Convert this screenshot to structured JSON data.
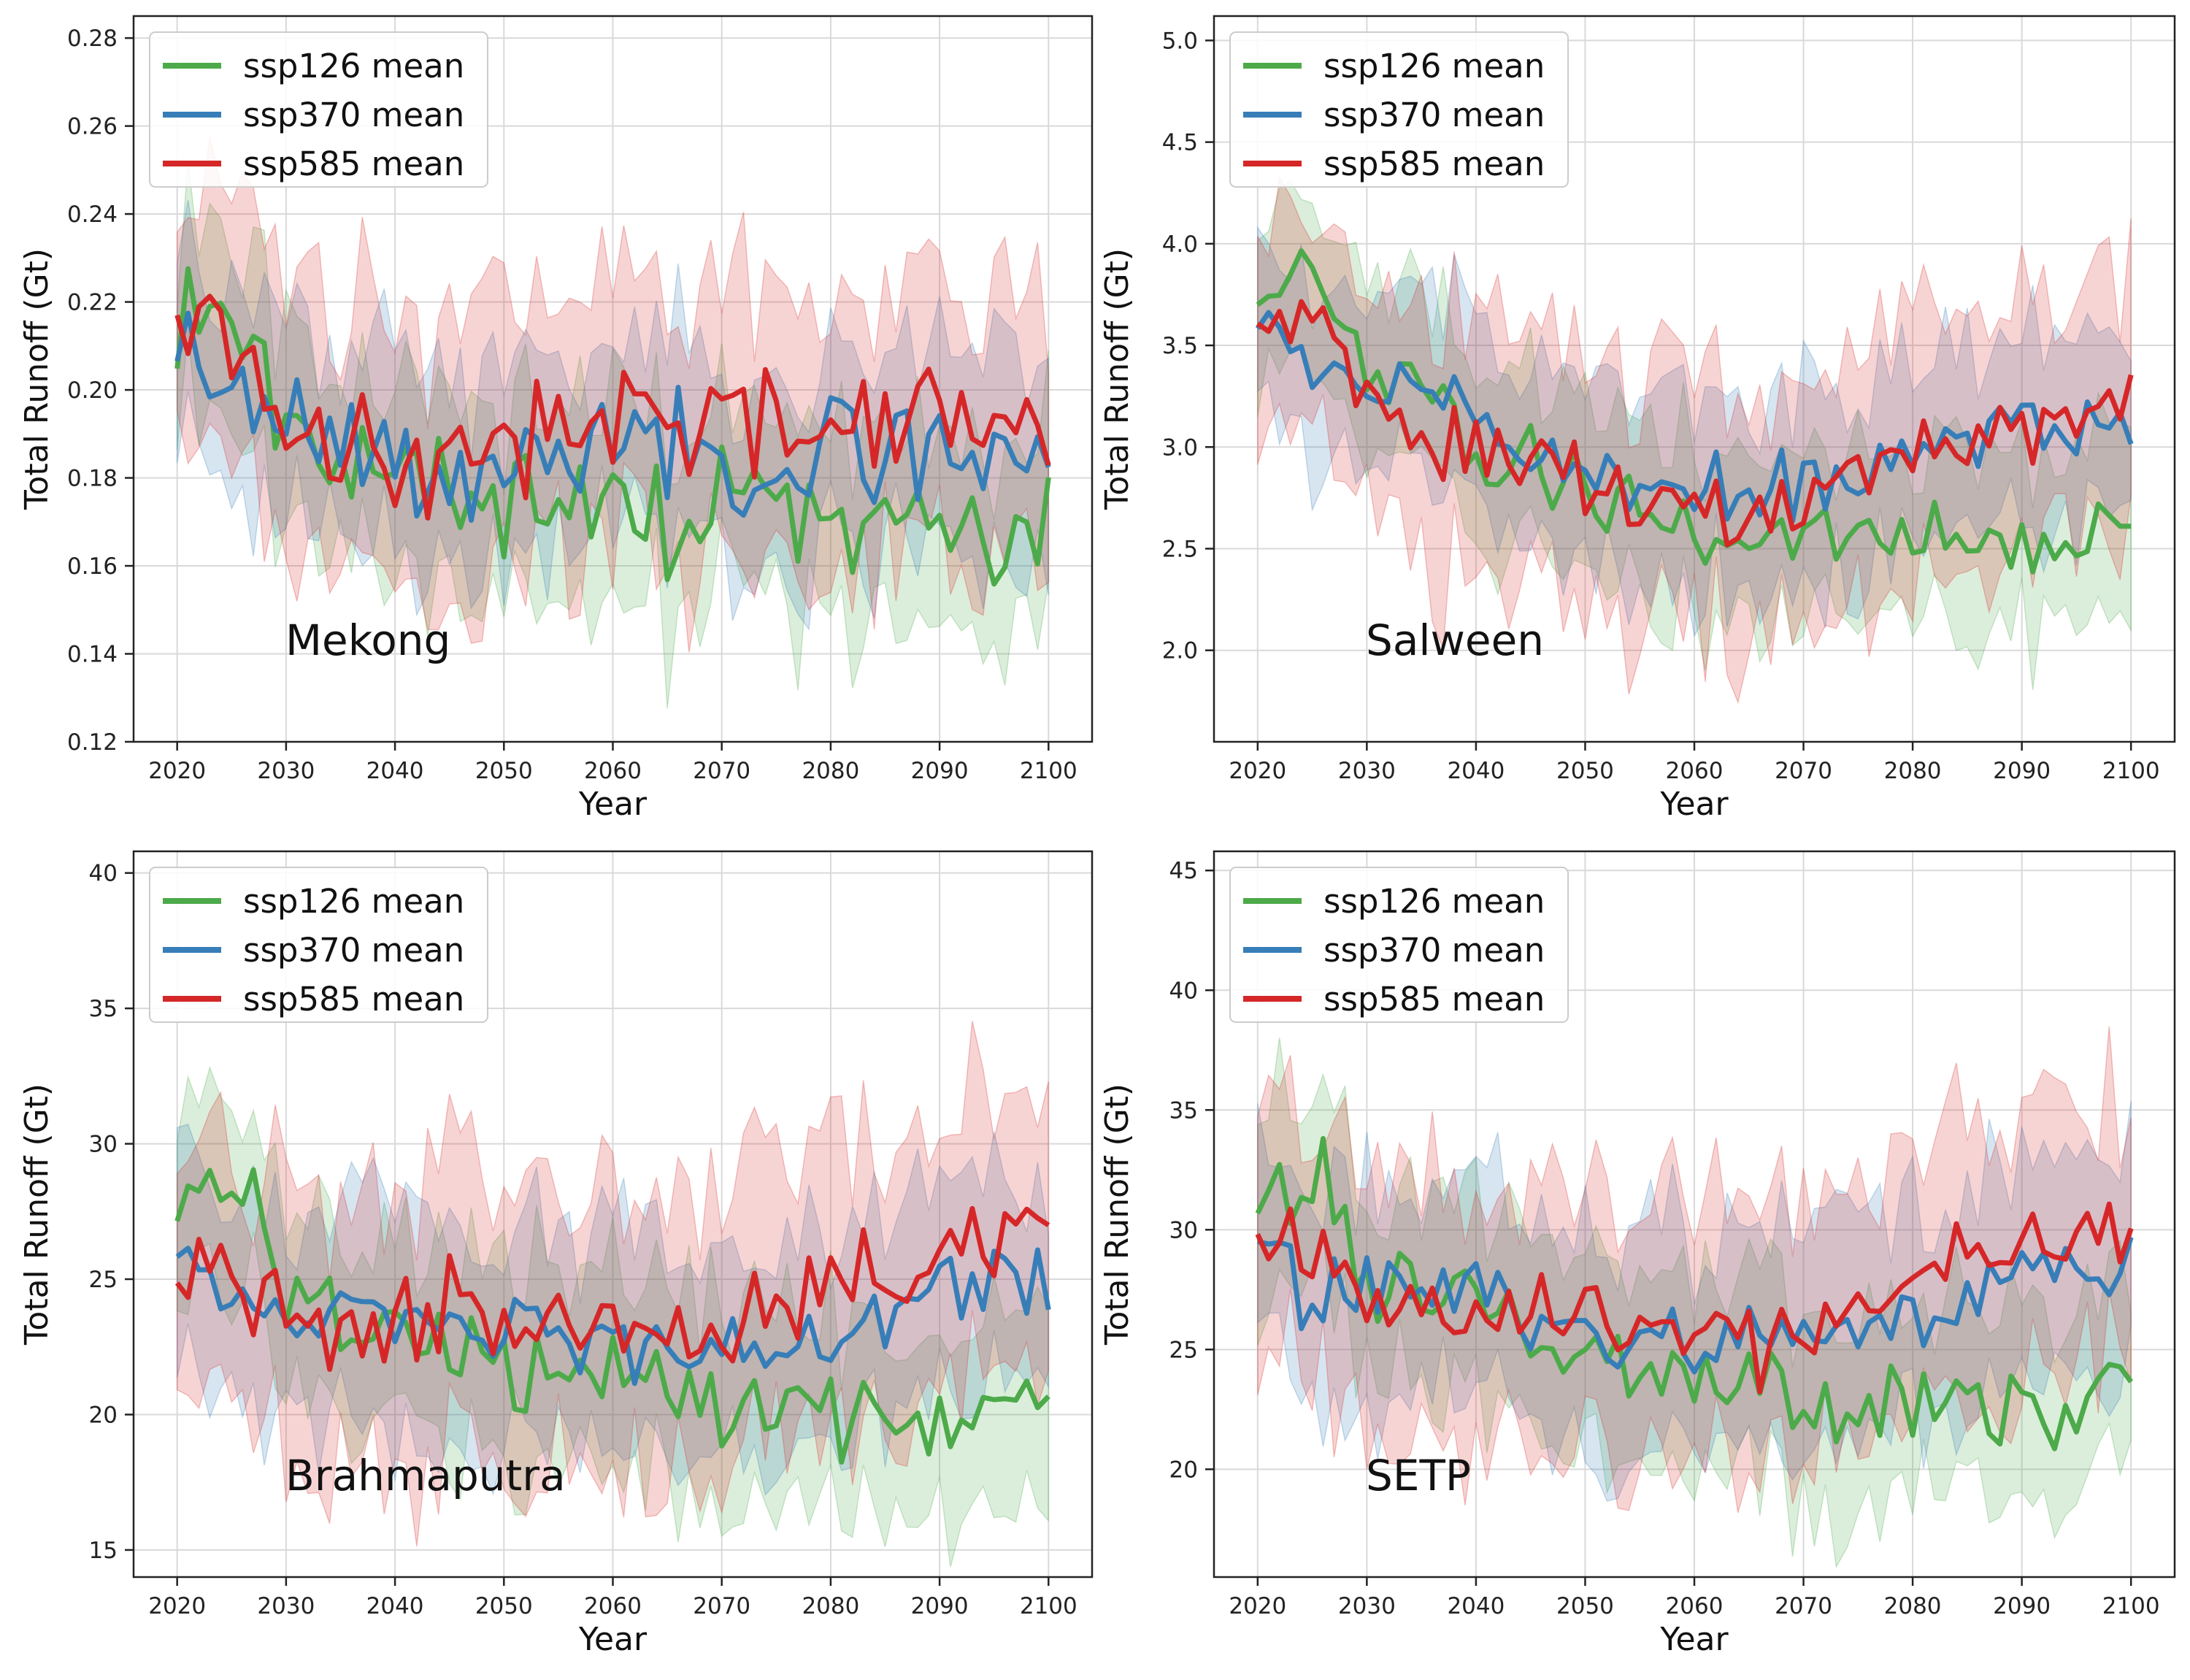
{
  "figure": {
    "legend_placement": "upper-left",
    "grid": true
  },
  "chart_data": [
    {
      "type": "line",
      "annotation": "Mekong",
      "xlabel": "Year",
      "ylabel": "Total Runoff (Gt)",
      "xlim": [
        2016,
        2104
      ],
      "ylim": [
        0.12,
        0.285
      ],
      "xticks": [
        2020,
        2030,
        2040,
        2050,
        2060,
        2070,
        2080,
        2090,
        2100
      ],
      "yticks": [
        0.12,
        0.14,
        0.16,
        0.18,
        0.2,
        0.22,
        0.24,
        0.26,
        0.28
      ],
      "ytick_labels": [
        "0.12",
        "0.14",
        "0.16",
        "0.18",
        "0.20",
        "0.22",
        "0.24",
        "0.26",
        "0.28"
      ],
      "series": [
        {
          "name": "ssp126 mean",
          "color": "#4daa4a",
          "keys": [
            [
              2020,
              0.213
            ],
            [
              2022,
              0.225
            ],
            [
              2025,
              0.221
            ],
            [
              2030,
              0.195
            ],
            [
              2035,
              0.185
            ],
            [
              2040,
              0.188
            ],
            [
              2045,
              0.175
            ],
            [
              2050,
              0.177
            ],
            [
              2055,
              0.176
            ],
            [
              2060,
              0.177
            ],
            [
              2065,
              0.172
            ],
            [
              2070,
              0.174
            ],
            [
              2075,
              0.17
            ],
            [
              2080,
              0.169
            ],
            [
              2085,
              0.167
            ],
            [
              2090,
              0.167
            ],
            [
              2095,
              0.158
            ],
            [
              2100,
              0.172
            ]
          ],
          "amp": 0.011,
          "band": 0.021,
          "seed": 11
        },
        {
          "name": "ssp370 mean",
          "color": "#377eb8",
          "keys": [
            [
              2020,
              0.213
            ],
            [
              2023,
              0.204
            ],
            [
              2030,
              0.198
            ],
            [
              2035,
              0.19
            ],
            [
              2040,
              0.184
            ],
            [
              2045,
              0.18
            ],
            [
              2050,
              0.18
            ],
            [
              2055,
              0.183
            ],
            [
              2060,
              0.185
            ],
            [
              2065,
              0.187
            ],
            [
              2070,
              0.184
            ],
            [
              2075,
              0.185
            ],
            [
              2080,
              0.185
            ],
            [
              2085,
              0.184
            ],
            [
              2090,
              0.19
            ],
            [
              2095,
              0.19
            ],
            [
              2100,
              0.183
            ]
          ],
          "amp": 0.01,
          "band": 0.022,
          "seed": 23
        },
        {
          "name": "ssp585 mean",
          "color": "#d62728",
          "keys": [
            [
              2020,
              0.221
            ],
            [
              2023,
              0.22
            ],
            [
              2030,
              0.196
            ],
            [
              2035,
              0.188
            ],
            [
              2040,
              0.184
            ],
            [
              2045,
              0.186
            ],
            [
              2050,
              0.188
            ],
            [
              2055,
              0.192
            ],
            [
              2060,
              0.193
            ],
            [
              2065,
              0.192
            ],
            [
              2070,
              0.194
            ],
            [
              2075,
              0.193
            ],
            [
              2080,
              0.195
            ],
            [
              2085,
              0.193
            ],
            [
              2090,
              0.193
            ],
            [
              2095,
              0.19
            ],
            [
              2100,
              0.19
            ]
          ],
          "amp": 0.011,
          "band": 0.03,
          "seed": 37
        }
      ]
    },
    {
      "type": "line",
      "annotation": "Salween",
      "xlabel": "Year",
      "ylabel": "Total Runoff (Gt)",
      "xlim": [
        2016,
        2104
      ],
      "ylim": [
        1.55,
        5.12
      ],
      "xticks": [
        2020,
        2030,
        2040,
        2050,
        2060,
        2070,
        2080,
        2090,
        2100
      ],
      "yticks": [
        2.0,
        2.5,
        3.0,
        3.5,
        4.0,
        4.5,
        5.0
      ],
      "ytick_labels": [
        "2.0",
        "2.5",
        "3.0",
        "3.5",
        "4.0",
        "4.5",
        "5.0"
      ],
      "series": [
        {
          "name": "ssp126 mean",
          "color": "#4daa4a",
          "keys": [
            [
              2020,
              3.7
            ],
            [
              2025,
              3.75
            ],
            [
              2030,
              3.35
            ],
            [
              2035,
              3.2
            ],
            [
              2040,
              3.05
            ],
            [
              2045,
              2.9
            ],
            [
              2050,
              2.8
            ],
            [
              2055,
              2.75
            ],
            [
              2060,
              2.6
            ],
            [
              2065,
              2.55
            ],
            [
              2070,
              2.6
            ],
            [
              2075,
              2.55
            ],
            [
              2080,
              2.55
            ],
            [
              2085,
              2.6
            ],
            [
              2090,
              2.55
            ],
            [
              2095,
              2.5
            ],
            [
              2100,
              2.65
            ]
          ],
          "amp": 0.16,
          "band": 0.42,
          "seed": 41
        },
        {
          "name": "ssp370 mean",
          "color": "#377eb8",
          "keys": [
            [
              2020,
              3.7
            ],
            [
              2025,
              3.4
            ],
            [
              2030,
              3.4
            ],
            [
              2035,
              3.3
            ],
            [
              2040,
              3.15
            ],
            [
              2045,
              2.95
            ],
            [
              2050,
              2.85
            ],
            [
              2055,
              2.8
            ],
            [
              2060,
              2.8
            ],
            [
              2065,
              2.8
            ],
            [
              2070,
              2.8
            ],
            [
              2075,
              2.85
            ],
            [
              2080,
              2.95
            ],
            [
              2085,
              3.0
            ],
            [
              2090,
              3.15
            ],
            [
              2095,
              3.1
            ],
            [
              2100,
              3.15
            ]
          ],
          "amp": 0.13,
          "band": 0.45,
          "seed": 53
        },
        {
          "name": "ssp585 mean",
          "color": "#d62728",
          "keys": [
            [
              2020,
              3.7
            ],
            [
              2024,
              3.6
            ],
            [
              2030,
              3.35
            ],
            [
              2035,
              3.1
            ],
            [
              2040,
              2.95
            ],
            [
              2045,
              2.9
            ],
            [
              2050,
              2.85
            ],
            [
              2055,
              2.75
            ],
            [
              2060,
              2.7
            ],
            [
              2065,
              2.65
            ],
            [
              2070,
              2.75
            ],
            [
              2075,
              2.9
            ],
            [
              2080,
              3.0
            ],
            [
              2085,
              3.05
            ],
            [
              2090,
              3.1
            ],
            [
              2095,
              3.15
            ],
            [
              2100,
              3.15
            ]
          ],
          "amp": 0.15,
          "band": 0.6,
          "seed": 67
        }
      ]
    },
    {
      "type": "line",
      "annotation": "Brahmaputra",
      "xlabel": "Year",
      "ylabel": "Total Runoff (Gt)",
      "xlim": [
        2016,
        2104
      ],
      "ylim": [
        14.0,
        40.8
      ],
      "xticks": [
        2020,
        2030,
        2040,
        2050,
        2060,
        2070,
        2080,
        2090,
        2100
      ],
      "yticks": [
        15,
        20,
        25,
        30,
        35,
        40
      ],
      "ytick_labels": [
        "15",
        "20",
        "25",
        "30",
        "35",
        "40"
      ],
      "series": [
        {
          "name": "ssp126 mean",
          "color": "#4daa4a",
          "keys": [
            [
              2020,
              27.5
            ],
            [
              2026,
              28.0
            ],
            [
              2030,
              24.5
            ],
            [
              2035,
              23.5
            ],
            [
              2040,
              23.0
            ],
            [
              2045,
              22.5
            ],
            [
              2050,
              22.0
            ],
            [
              2055,
              21.5
            ],
            [
              2060,
              21.5
            ],
            [
              2065,
              21.0
            ],
            [
              2070,
              20.5
            ],
            [
              2075,
              20.5
            ],
            [
              2080,
              20.0
            ],
            [
              2085,
              20.0
            ],
            [
              2090,
              20.0
            ],
            [
              2095,
              19.5
            ],
            [
              2100,
              21.0
            ]
          ],
          "amp": 1.4,
          "band": 3.5,
          "seed": 71
        },
        {
          "name": "ssp370 mean",
          "color": "#377eb8",
          "keys": [
            [
              2020,
              26.0
            ],
            [
              2025,
              23.5
            ],
            [
              2030,
              24.0
            ],
            [
              2035,
              24.0
            ],
            [
              2040,
              24.0
            ],
            [
              2045,
              23.0
            ],
            [
              2050,
              23.0
            ],
            [
              2055,
              22.5
            ],
            [
              2060,
              22.5
            ],
            [
              2065,
              22.5
            ],
            [
              2070,
              22.5
            ],
            [
              2075,
              23.0
            ],
            [
              2080,
              23.0
            ],
            [
              2085,
              23.5
            ],
            [
              2090,
              25.0
            ],
            [
              2095,
              25.0
            ],
            [
              2100,
              25.0
            ]
          ],
          "amp": 1.1,
          "band": 4.0,
          "seed": 83
        },
        {
          "name": "ssp585 mean",
          "color": "#d62728",
          "keys": [
            [
              2020,
              26.0
            ],
            [
              2023,
              26.0
            ],
            [
              2030,
              24.0
            ],
            [
              2035,
              23.0
            ],
            [
              2040,
              23.5
            ],
            [
              2045,
              24.0
            ],
            [
              2050,
              23.5
            ],
            [
              2055,
              23.5
            ],
            [
              2060,
              23.0
            ],
            [
              2065,
              22.5
            ],
            [
              2070,
              22.5
            ],
            [
              2075,
              24.0
            ],
            [
              2080,
              25.0
            ],
            [
              2085,
              25.0
            ],
            [
              2090,
              25.5
            ],
            [
              2095,
              26.0
            ],
            [
              2100,
              26.5
            ]
          ],
          "amp": 1.3,
          "band": 5.0,
          "seed": 97
        }
      ]
    },
    {
      "type": "line",
      "annotation": "SETP",
      "xlabel": "Year",
      "ylabel": "Total Runoff (Gt)",
      "xlim": [
        2016,
        2104
      ],
      "ylim": [
        15.5,
        45.8
      ],
      "xticks": [
        2020,
        2030,
        2040,
        2050,
        2060,
        2070,
        2080,
        2090,
        2100
      ],
      "yticks": [
        20,
        25,
        30,
        35,
        40,
        45
      ],
      "ytick_labels": [
        "20",
        "25",
        "30",
        "35",
        "40",
        "45"
      ],
      "series": [
        {
          "name": "ssp126 mean",
          "color": "#4daa4a",
          "keys": [
            [
              2020,
              31.5
            ],
            [
              2026,
              32.0
            ],
            [
              2030,
              28.5
            ],
            [
              2035,
              27.0
            ],
            [
              2040,
              26.5
            ],
            [
              2045,
              25.5
            ],
            [
              2050,
              25.0
            ],
            [
              2055,
              24.5
            ],
            [
              2060,
              24.0
            ],
            [
              2065,
              23.5
            ],
            [
              2070,
              23.0
            ],
            [
              2075,
              23.0
            ],
            [
              2080,
              22.5
            ],
            [
              2085,
              22.5
            ],
            [
              2090,
              22.5
            ],
            [
              2095,
              22.0
            ],
            [
              2100,
              24.0
            ]
          ],
          "amp": 1.6,
          "band": 4.0,
          "seed": 101
        },
        {
          "name": "ssp370 mean",
          "color": "#377eb8",
          "keys": [
            [
              2020,
              30.0
            ],
            [
              2025,
              27.0
            ],
            [
              2030,
              27.5
            ],
            [
              2035,
              27.5
            ],
            [
              2040,
              27.5
            ],
            [
              2045,
              26.5
            ],
            [
              2050,
              26.0
            ],
            [
              2055,
              25.5
            ],
            [
              2060,
              25.5
            ],
            [
              2065,
              25.5
            ],
            [
              2070,
              25.5
            ],
            [
              2075,
              26.0
            ],
            [
              2080,
              26.5
            ],
            [
              2085,
              27.0
            ],
            [
              2090,
              28.5
            ],
            [
              2095,
              28.5
            ],
            [
              2100,
              28.5
            ]
          ],
          "amp": 1.2,
          "band": 4.5,
          "seed": 113
        },
        {
          "name": "ssp585 mean",
          "color": "#d62728",
          "keys": [
            [
              2020,
              30.0
            ],
            [
              2023,
              30.0
            ],
            [
              2030,
              27.5
            ],
            [
              2035,
              26.5
            ],
            [
              2040,
              26.5
            ],
            [
              2045,
              27.0
            ],
            [
              2050,
              26.5
            ],
            [
              2055,
              26.0
            ],
            [
              2060,
              25.5
            ],
            [
              2065,
              25.0
            ],
            [
              2070,
              25.5
            ],
            [
              2075,
              27.0
            ],
            [
              2080,
              28.0
            ],
            [
              2085,
              28.5
            ],
            [
              2090,
              29.0
            ],
            [
              2095,
              29.5
            ],
            [
              2100,
              29.5
            ]
          ],
          "amp": 1.4,
          "band": 5.5,
          "seed": 127
        }
      ]
    }
  ]
}
